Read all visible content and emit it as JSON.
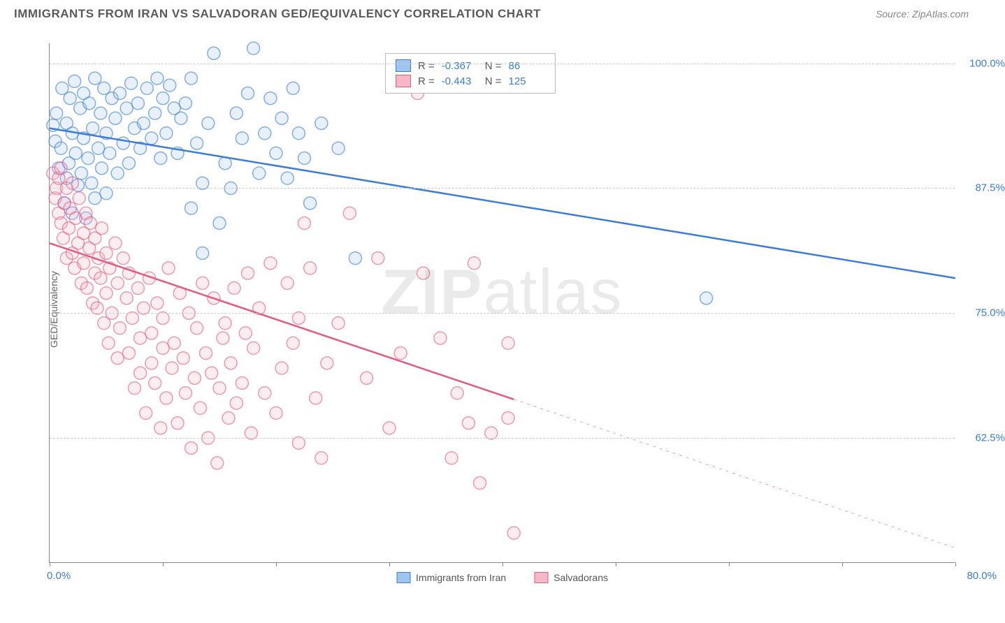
{
  "title": "IMMIGRANTS FROM IRAN VS SALVADORAN GED/EQUIVALENCY CORRELATION CHART",
  "source": "Source: ZipAtlas.com",
  "watermark": "ZIPatlas",
  "chart": {
    "type": "scatter",
    "y_axis_label": "GED/Equivalency",
    "x_min": 0.0,
    "x_max": 80.0,
    "x_min_label": "0.0%",
    "x_max_label": "80.0%",
    "x_ticks": [
      0,
      10,
      20,
      30,
      40,
      50,
      60,
      70,
      80
    ],
    "y_min": 50.0,
    "y_max": 102.0,
    "y_gridlines": [
      62.5,
      75.0,
      87.5,
      100.0
    ],
    "y_tick_labels": [
      "62.5%",
      "75.0%",
      "87.5%",
      "100.0%"
    ],
    "background_color": "#ffffff",
    "grid_color": "#cccccc",
    "axis_color": "#888888",
    "tick_label_color": "#3b7dd8",
    "marker_radius": 9,
    "marker_stroke_width": 1.5,
    "marker_fill_opacity": 0.25,
    "trend_line_width": 2.5,
    "series": [
      {
        "name": "Immigrants from Iran",
        "color_stroke": "#3b7dd8",
        "color_fill": "#9ec5ef",
        "R": "-0.367",
        "N": "86",
        "trend": {
          "x1": 0,
          "y1": 93.5,
          "x2": 80,
          "y2": 78.5,
          "dash_after_x": 80
        },
        "points": [
          [
            0.3,
            93.8
          ],
          [
            0.5,
            92.2
          ],
          [
            0.6,
            95.0
          ],
          [
            0.8,
            89.5
          ],
          [
            1.0,
            91.5
          ],
          [
            1.1,
            97.5
          ],
          [
            1.3,
            86.0
          ],
          [
            1.5,
            94.0
          ],
          [
            1.5,
            88.5
          ],
          [
            1.7,
            90.0
          ],
          [
            1.8,
            96.5
          ],
          [
            2.0,
            93.0
          ],
          [
            2.0,
            85.0
          ],
          [
            2.2,
            98.2
          ],
          [
            2.3,
            91.0
          ],
          [
            2.5,
            87.8
          ],
          [
            2.7,
            95.5
          ],
          [
            2.8,
            89.0
          ],
          [
            3.0,
            92.5
          ],
          [
            3.0,
            97.0
          ],
          [
            3.2,
            84.5
          ],
          [
            3.4,
            90.5
          ],
          [
            3.5,
            96.0
          ],
          [
            3.7,
            88.0
          ],
          [
            3.8,
            93.5
          ],
          [
            4.0,
            86.5
          ],
          [
            4.0,
            98.5
          ],
          [
            4.3,
            91.5
          ],
          [
            4.5,
            95.0
          ],
          [
            4.6,
            89.5
          ],
          [
            4.8,
            97.5
          ],
          [
            5.0,
            93.0
          ],
          [
            5.0,
            87.0
          ],
          [
            5.3,
            91.0
          ],
          [
            5.5,
            96.5
          ],
          [
            5.8,
            94.5
          ],
          [
            6.0,
            89.0
          ],
          [
            6.2,
            97.0
          ],
          [
            6.5,
            92.0
          ],
          [
            6.8,
            95.5
          ],
          [
            7.0,
            90.0
          ],
          [
            7.2,
            98.0
          ],
          [
            7.5,
            93.5
          ],
          [
            7.8,
            96.0
          ],
          [
            8.0,
            91.5
          ],
          [
            8.3,
            94.0
          ],
          [
            8.6,
            97.5
          ],
          [
            9.0,
            92.5
          ],
          [
            9.3,
            95.0
          ],
          [
            9.5,
            98.5
          ],
          [
            9.8,
            90.5
          ],
          [
            10.0,
            96.5
          ],
          [
            10.3,
            93.0
          ],
          [
            10.6,
            97.8
          ],
          [
            11.0,
            95.5
          ],
          [
            11.3,
            91.0
          ],
          [
            11.6,
            94.5
          ],
          [
            12.0,
            96.0
          ],
          [
            12.5,
            98.5
          ],
          [
            13.0,
            92.0
          ],
          [
            13.5,
            88.0
          ],
          [
            14.0,
            94.0
          ],
          [
            14.5,
            101.0
          ],
          [
            15.0,
            84.0
          ],
          [
            15.5,
            90.0
          ],
          [
            16.0,
            87.5
          ],
          [
            16.5,
            95.0
          ],
          [
            17.0,
            92.5
          ],
          [
            17.5,
            97.0
          ],
          [
            18.0,
            101.5
          ],
          [
            18.5,
            89.0
          ],
          [
            19.0,
            93.0
          ],
          [
            19.5,
            96.5
          ],
          [
            20.0,
            91.0
          ],
          [
            20.5,
            94.5
          ],
          [
            21.0,
            88.5
          ],
          [
            21.5,
            97.5
          ],
          [
            22.0,
            93.0
          ],
          [
            22.5,
            90.5
          ],
          [
            13.5,
            81.0
          ],
          [
            12.5,
            85.5
          ],
          [
            23.0,
            86.0
          ],
          [
            24.0,
            94.0
          ],
          [
            25.5,
            91.5
          ],
          [
            27.0,
            80.5
          ],
          [
            58.0,
            76.5
          ]
        ]
      },
      {
        "name": "Salvadorans",
        "color_stroke": "#e65a7f",
        "color_fill": "#f5b8c8",
        "R": "-0.443",
        "N": "125",
        "trend": {
          "x1": 0,
          "y1": 82.0,
          "x2": 80,
          "y2": 51.5,
          "dash_after_x": 41
        },
        "points": [
          [
            0.3,
            89.0
          ],
          [
            0.5,
            86.5
          ],
          [
            0.6,
            87.5
          ],
          [
            0.8,
            85.0
          ],
          [
            0.8,
            88.5
          ],
          [
            1.0,
            84.0
          ],
          [
            1.0,
            89.5
          ],
          [
            1.2,
            82.5
          ],
          [
            1.3,
            86.0
          ],
          [
            1.5,
            80.5
          ],
          [
            1.5,
            87.5
          ],
          [
            1.7,
            83.5
          ],
          [
            1.8,
            85.5
          ],
          [
            2.0,
            81.0
          ],
          [
            2.0,
            88.0
          ],
          [
            2.2,
            79.5
          ],
          [
            2.3,
            84.5
          ],
          [
            2.5,
            82.0
          ],
          [
            2.6,
            86.5
          ],
          [
            2.8,
            78.0
          ],
          [
            3.0,
            83.0
          ],
          [
            3.0,
            80.0
          ],
          [
            3.2,
            85.0
          ],
          [
            3.3,
            77.5
          ],
          [
            3.5,
            81.5
          ],
          [
            3.6,
            84.0
          ],
          [
            3.8,
            76.0
          ],
          [
            4.0,
            79.0
          ],
          [
            4.0,
            82.5
          ],
          [
            4.2,
            75.5
          ],
          [
            4.3,
            80.5
          ],
          [
            4.5,
            78.5
          ],
          [
            4.6,
            83.5
          ],
          [
            4.8,
            74.0
          ],
          [
            5.0,
            77.0
          ],
          [
            5.0,
            81.0
          ],
          [
            5.2,
            72.0
          ],
          [
            5.3,
            79.5
          ],
          [
            5.5,
            75.0
          ],
          [
            5.8,
            82.0
          ],
          [
            6.0,
            70.5
          ],
          [
            6.0,
            78.0
          ],
          [
            6.2,
            73.5
          ],
          [
            6.5,
            80.5
          ],
          [
            6.8,
            76.5
          ],
          [
            7.0,
            71.0
          ],
          [
            7.0,
            79.0
          ],
          [
            7.3,
            74.5
          ],
          [
            7.5,
            67.5
          ],
          [
            7.8,
            77.5
          ],
          [
            8.0,
            72.5
          ],
          [
            8.0,
            69.0
          ],
          [
            8.3,
            75.5
          ],
          [
            8.5,
            65.0
          ],
          [
            8.8,
            78.5
          ],
          [
            9.0,
            70.0
          ],
          [
            9.0,
            73.0
          ],
          [
            9.3,
            68.0
          ],
          [
            9.5,
            76.0
          ],
          [
            9.8,
            63.5
          ],
          [
            10.0,
            71.5
          ],
          [
            10.0,
            74.5
          ],
          [
            10.3,
            66.5
          ],
          [
            10.5,
            79.5
          ],
          [
            10.8,
            69.5
          ],
          [
            11.0,
            72.0
          ],
          [
            11.3,
            64.0
          ],
          [
            11.5,
            77.0
          ],
          [
            11.8,
            70.5
          ],
          [
            12.0,
            67.0
          ],
          [
            12.3,
            75.0
          ],
          [
            12.5,
            61.5
          ],
          [
            12.8,
            68.5
          ],
          [
            13.0,
            73.5
          ],
          [
            13.3,
            65.5
          ],
          [
            13.5,
            78.0
          ],
          [
            13.8,
            71.0
          ],
          [
            14.0,
            62.5
          ],
          [
            14.3,
            69.0
          ],
          [
            14.5,
            76.5
          ],
          [
            14.8,
            60.0
          ],
          [
            15.0,
            67.5
          ],
          [
            15.3,
            72.5
          ],
          [
            15.5,
            74.0
          ],
          [
            15.8,
            64.5
          ],
          [
            16.0,
            70.0
          ],
          [
            16.3,
            77.5
          ],
          [
            16.5,
            66.0
          ],
          [
            17.0,
            68.0
          ],
          [
            17.3,
            73.0
          ],
          [
            17.5,
            79.0
          ],
          [
            17.8,
            63.0
          ],
          [
            18.0,
            71.5
          ],
          [
            18.5,
            75.5
          ],
          [
            19.0,
            67.0
          ],
          [
            19.5,
            80.0
          ],
          [
            20.0,
            65.0
          ],
          [
            20.5,
            69.5
          ],
          [
            21.0,
            78.0
          ],
          [
            21.5,
            72.0
          ],
          [
            22.0,
            74.5
          ],
          [
            22.5,
            84.0
          ],
          [
            23.0,
            79.5
          ],
          [
            23.5,
            66.5
          ],
          [
            24.5,
            70.0
          ],
          [
            25.5,
            74.0
          ],
          [
            26.5,
            85.0
          ],
          [
            28.0,
            68.5
          ],
          [
            29.0,
            80.5
          ],
          [
            30.0,
            63.5
          ],
          [
            31.0,
            71.0
          ],
          [
            32.5,
            97.0
          ],
          [
            33.0,
            79.0
          ],
          [
            34.5,
            72.5
          ],
          [
            36.0,
            67.0
          ],
          [
            37.5,
            80.0
          ],
          [
            39.0,
            63.0
          ],
          [
            40.5,
            72.0
          ],
          [
            38.0,
            58.0
          ],
          [
            35.5,
            60.5
          ],
          [
            37.0,
            64.0
          ],
          [
            22.0,
            62.0
          ],
          [
            24.0,
            60.5
          ],
          [
            40.5,
            64.5
          ],
          [
            41.0,
            53.0
          ]
        ]
      }
    ],
    "bottom_legend": [
      {
        "label": "Immigrants from Iran",
        "fill": "#9ec5ef",
        "stroke": "#3b7dd8"
      },
      {
        "label": "Salvadorans",
        "fill": "#f5b8c8",
        "stroke": "#e65a7f"
      }
    ]
  }
}
